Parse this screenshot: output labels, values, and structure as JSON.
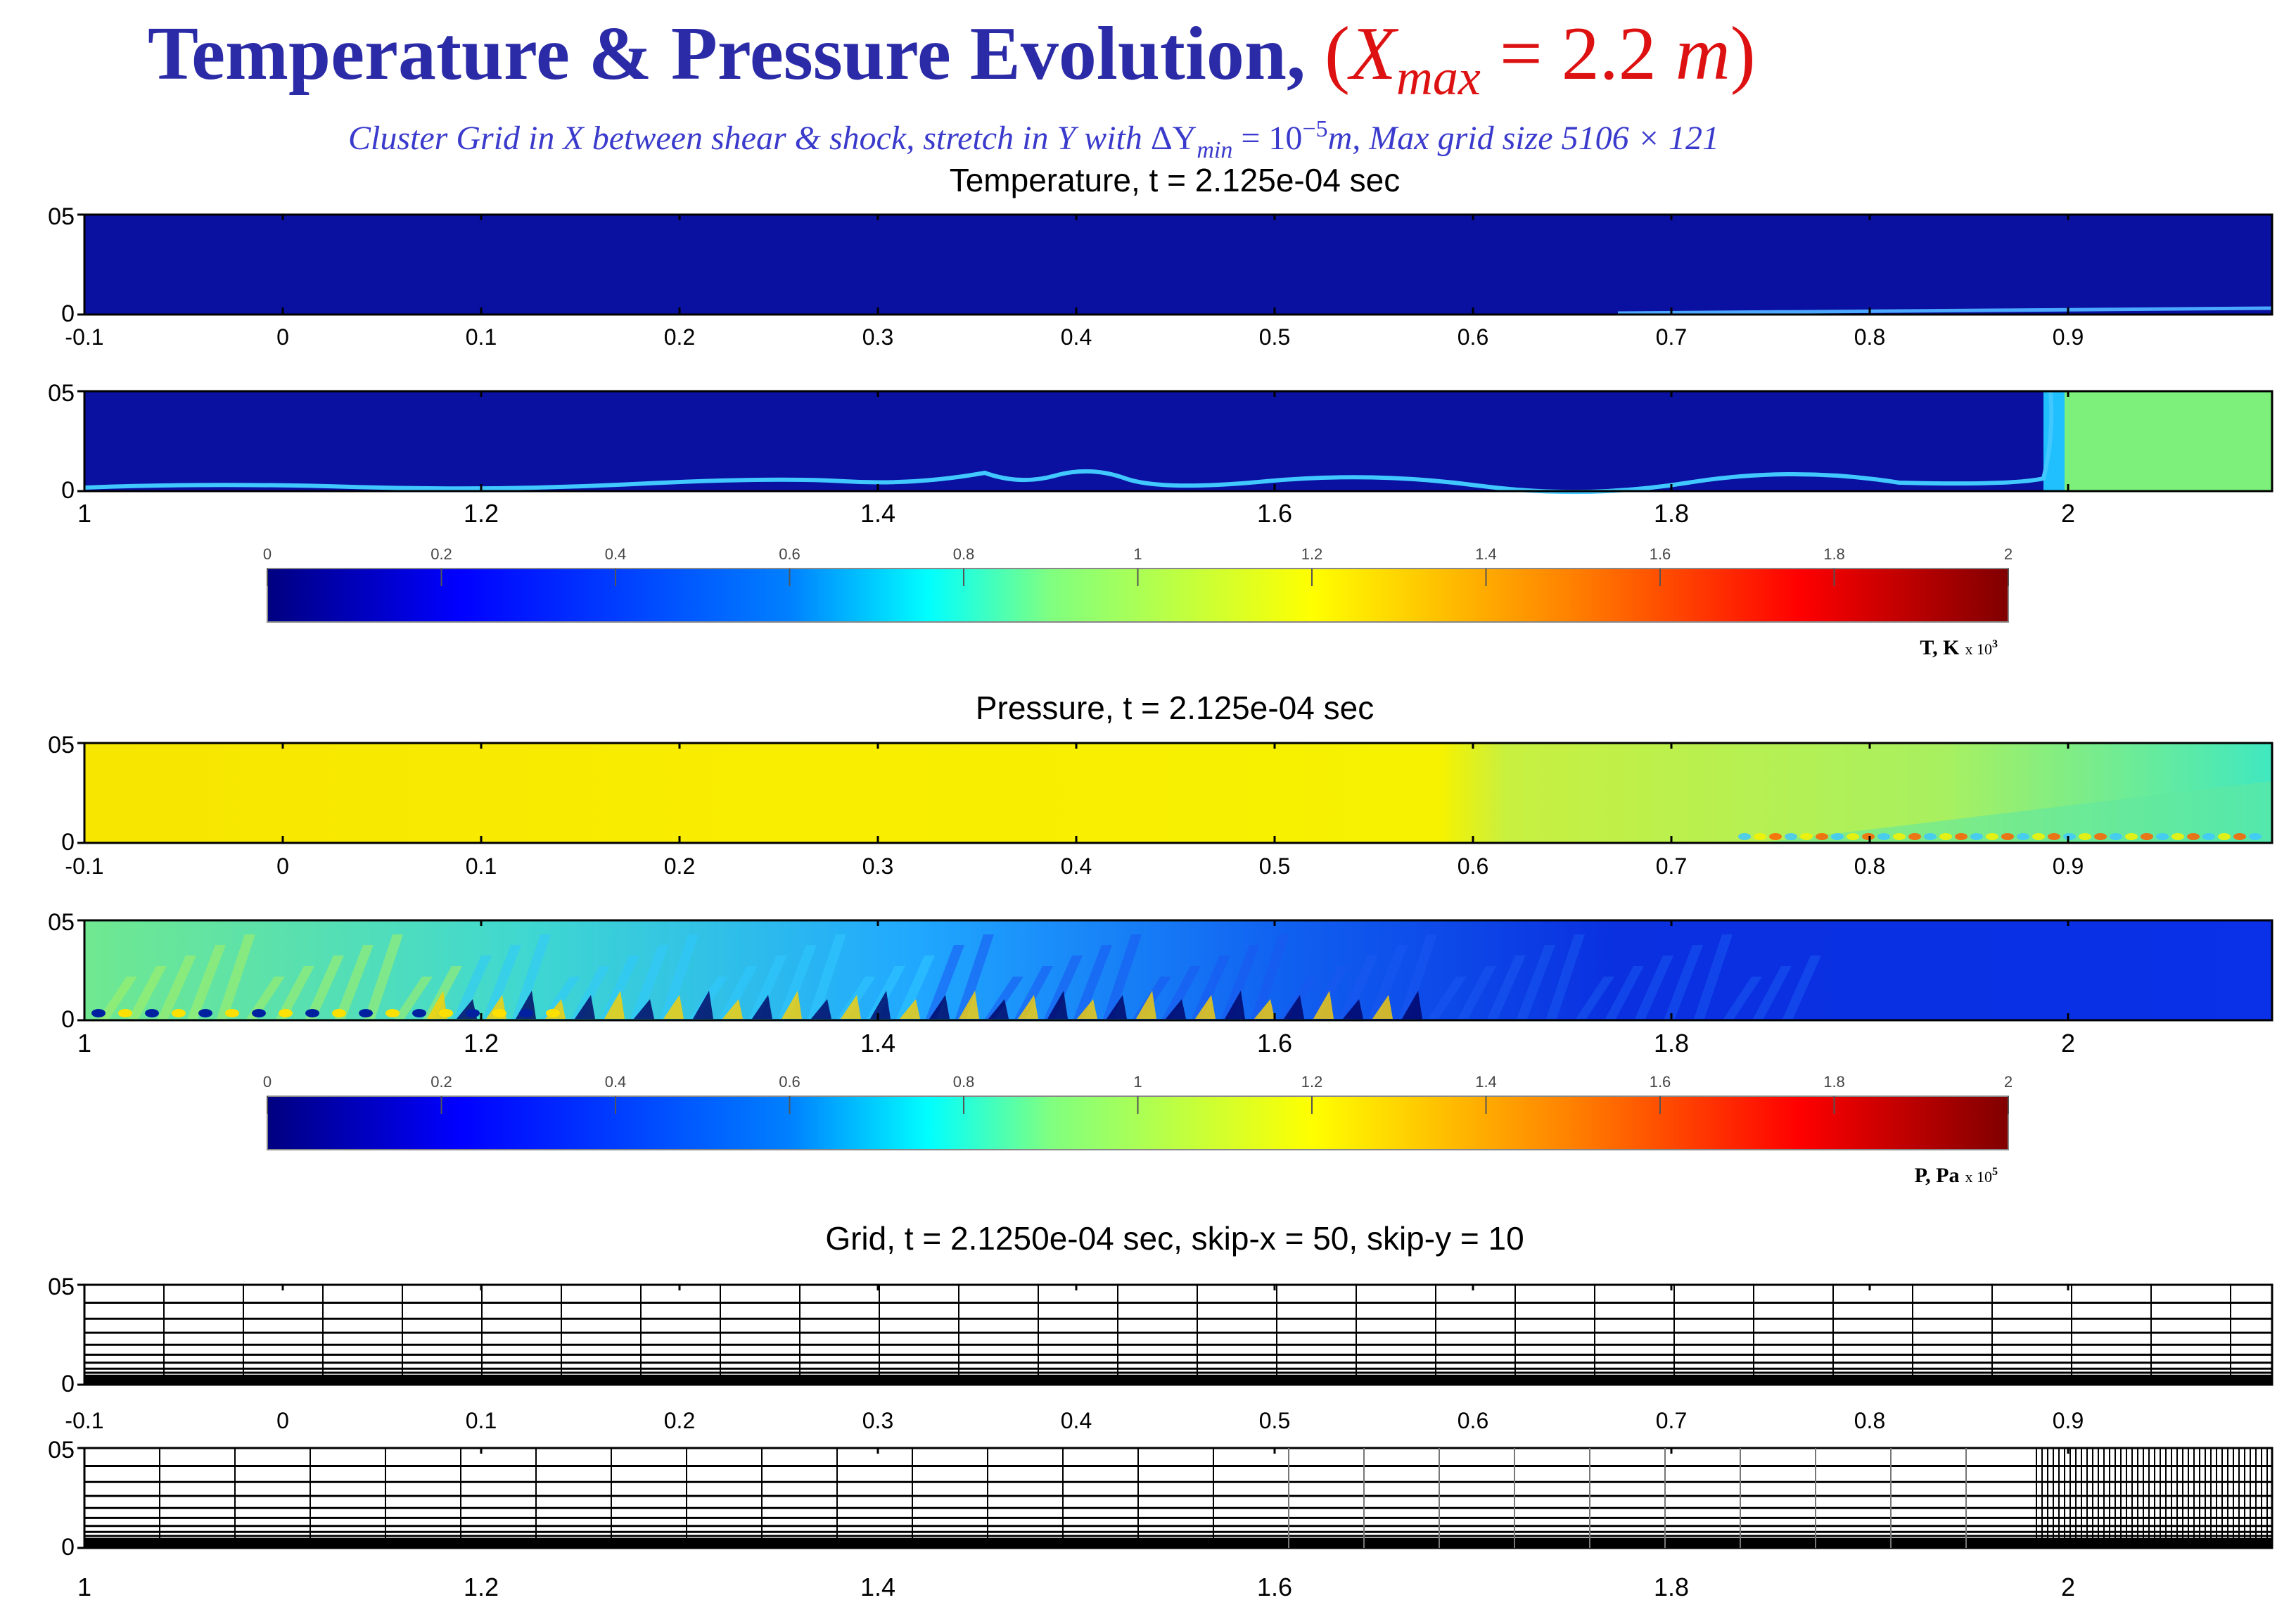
{
  "header": {
    "title_main": "Temperature & Pressure Evolution,",
    "title_paren_open": "(",
    "title_x": "X",
    "title_sub": "max",
    "title_eq": " = 2.2 ",
    "title_m": "m",
    "title_paren_close": ")",
    "subtitle_a": "Cluster Grid in X between shear & shock, stretch in Y with ",
    "subtitle_delta": "ΔY",
    "subtitle_min": "min",
    "subtitle_b": " = 10",
    "subtitle_exp": "−5",
    "subtitle_c": "m, Max grid size 5106 × 121"
  },
  "sections": {
    "temperature": {
      "title": "Temperature, t = 2.125e-04 sec",
      "colorbar_label": "T, K",
      "colorbar_unit": "x 10",
      "colorbar_exp": "3"
    },
    "pressure": {
      "title": "Pressure, t = 2.125e-04 sec",
      "colorbar_label": "P, Pa",
      "colorbar_unit": "x 10",
      "colorbar_exp": "5"
    },
    "grid": {
      "title": "Grid, t = 2.1250e-04 sec,    skip-x = 50, skip-y = 10"
    }
  },
  "axes": {
    "y_ticks": [
      "05",
      "0"
    ],
    "x_ticks_top": [
      "-0.1",
      "0",
      "0.1",
      "0.2",
      "0.3",
      "0.4",
      "0.5",
      "0.6",
      "0.7",
      "0.8",
      "0.9"
    ],
    "x_ticks_bottom": [
      "1",
      "1.2",
      "1.4",
      "1.6",
      "1.8",
      "2"
    ]
  },
  "colorbar": {
    "ticks": [
      "0",
      "0.2",
      "0.4",
      "0.6",
      "0.8",
      "1",
      "1.2",
      "1.4",
      "1.6",
      "1.8",
      "2"
    ],
    "colors": [
      "#000080",
      "#0000ff",
      "#0080ff",
      "#00ffff",
      "#80ff80",
      "#ffff00",
      "#ff8000",
      "#ff0000",
      "#800000"
    ]
  },
  "colors": {
    "title_blue": "#2b2ba8",
    "title_red": "#dd1111",
    "subtitle_blue": "#3a3acc",
    "temp_background": "#0a10a0",
    "temp_postshock": "#7cf07a",
    "pressure_upstream": "#f2f000",
    "pressure_downstream": "#0e2ee0"
  }
}
